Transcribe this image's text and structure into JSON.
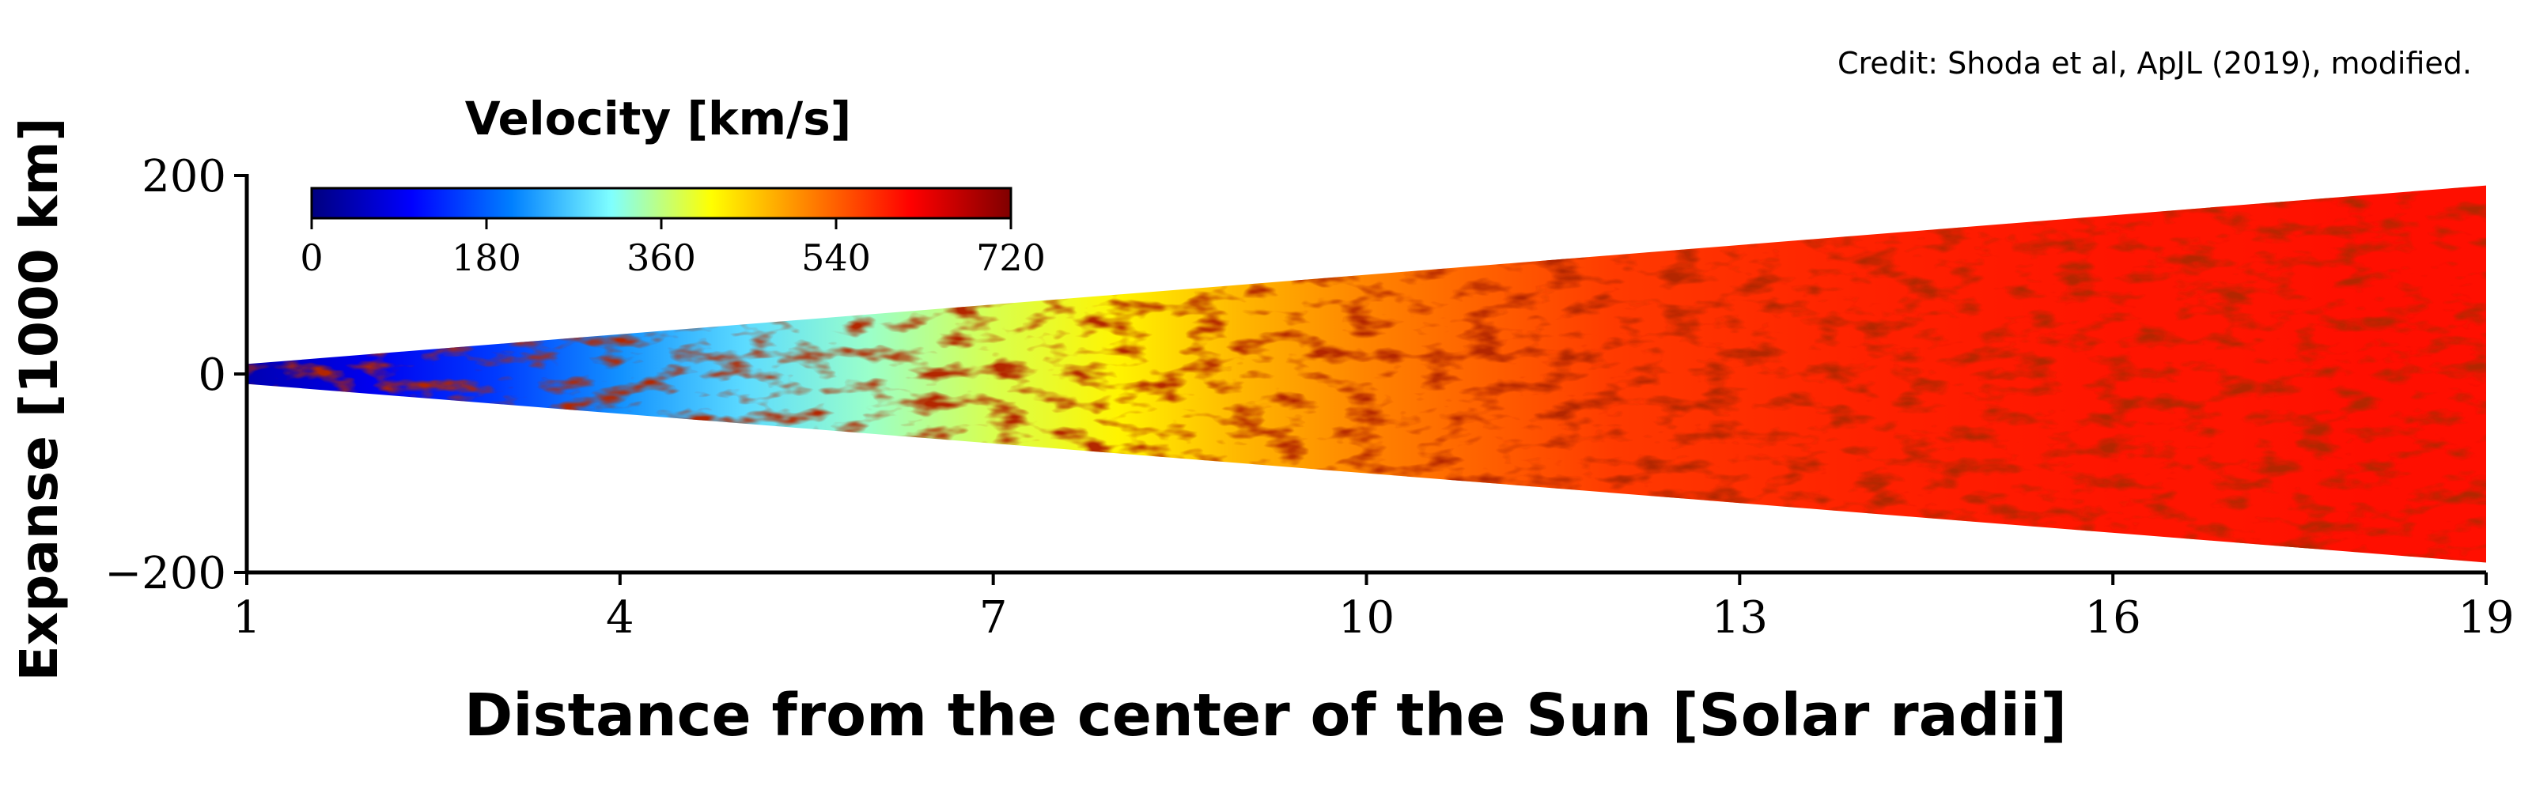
{
  "credit": "Credit: Shoda et al, ApJL (2019), modified.",
  "colors": {
    "axis": "#000000",
    "jet": [
      "#00007f",
      "#0000ff",
      "#007fff",
      "#7fffff",
      "#ffff00",
      "#ff7f00",
      "#ff0000",
      "#7f0000"
    ],
    "background": "#ffffff"
  },
  "chart_data": {
    "type": "heatmap",
    "title": "",
    "xlabel": "Distance from the center of the Sun [Solar radii]",
    "ylabel": "Expanse [1000 km]",
    "xlim": [
      1,
      19
    ],
    "ylim": [
      -200,
      200
    ],
    "x_ticks": [
      1,
      4,
      7,
      10,
      13,
      16,
      19
    ],
    "y_ticks": [
      {
        "value": 200,
        "label": "200"
      },
      {
        "value": 0,
        "label": "0"
      },
      {
        "value": -200,
        "label": "−200"
      }
    ],
    "colorbar": {
      "label": "Velocity [km/s]",
      "range": [
        0,
        720
      ],
      "ticks": [
        0,
        180,
        360,
        540,
        720
      ],
      "colormap": "jet"
    },
    "domain_half_width": [
      {
        "x": 1,
        "y": 10
      },
      {
        "x": 19,
        "y": 190
      }
    ],
    "velocity_profile": [
      {
        "x": 1,
        "v": 40
      },
      {
        "x": 2,
        "v": 90
      },
      {
        "x": 3,
        "v": 150
      },
      {
        "x": 4,
        "v": 220
      },
      {
        "x": 5,
        "v": 280
      },
      {
        "x": 6,
        "v": 330
      },
      {
        "x": 7,
        "v": 380
      },
      {
        "x": 8,
        "v": 420
      },
      {
        "x": 9,
        "v": 470
      },
      {
        "x": 10,
        "v": 510
      },
      {
        "x": 11,
        "v": 540
      },
      {
        "x": 12,
        "v": 570
      },
      {
        "x": 13,
        "v": 580
      },
      {
        "x": 14,
        "v": 590
      },
      {
        "x": 15,
        "v": 595
      },
      {
        "x": 16,
        "v": 600
      },
      {
        "x": 17,
        "v": 600
      },
      {
        "x": 18,
        "v": 605
      },
      {
        "x": 19,
        "v": 605
      }
    ]
  }
}
